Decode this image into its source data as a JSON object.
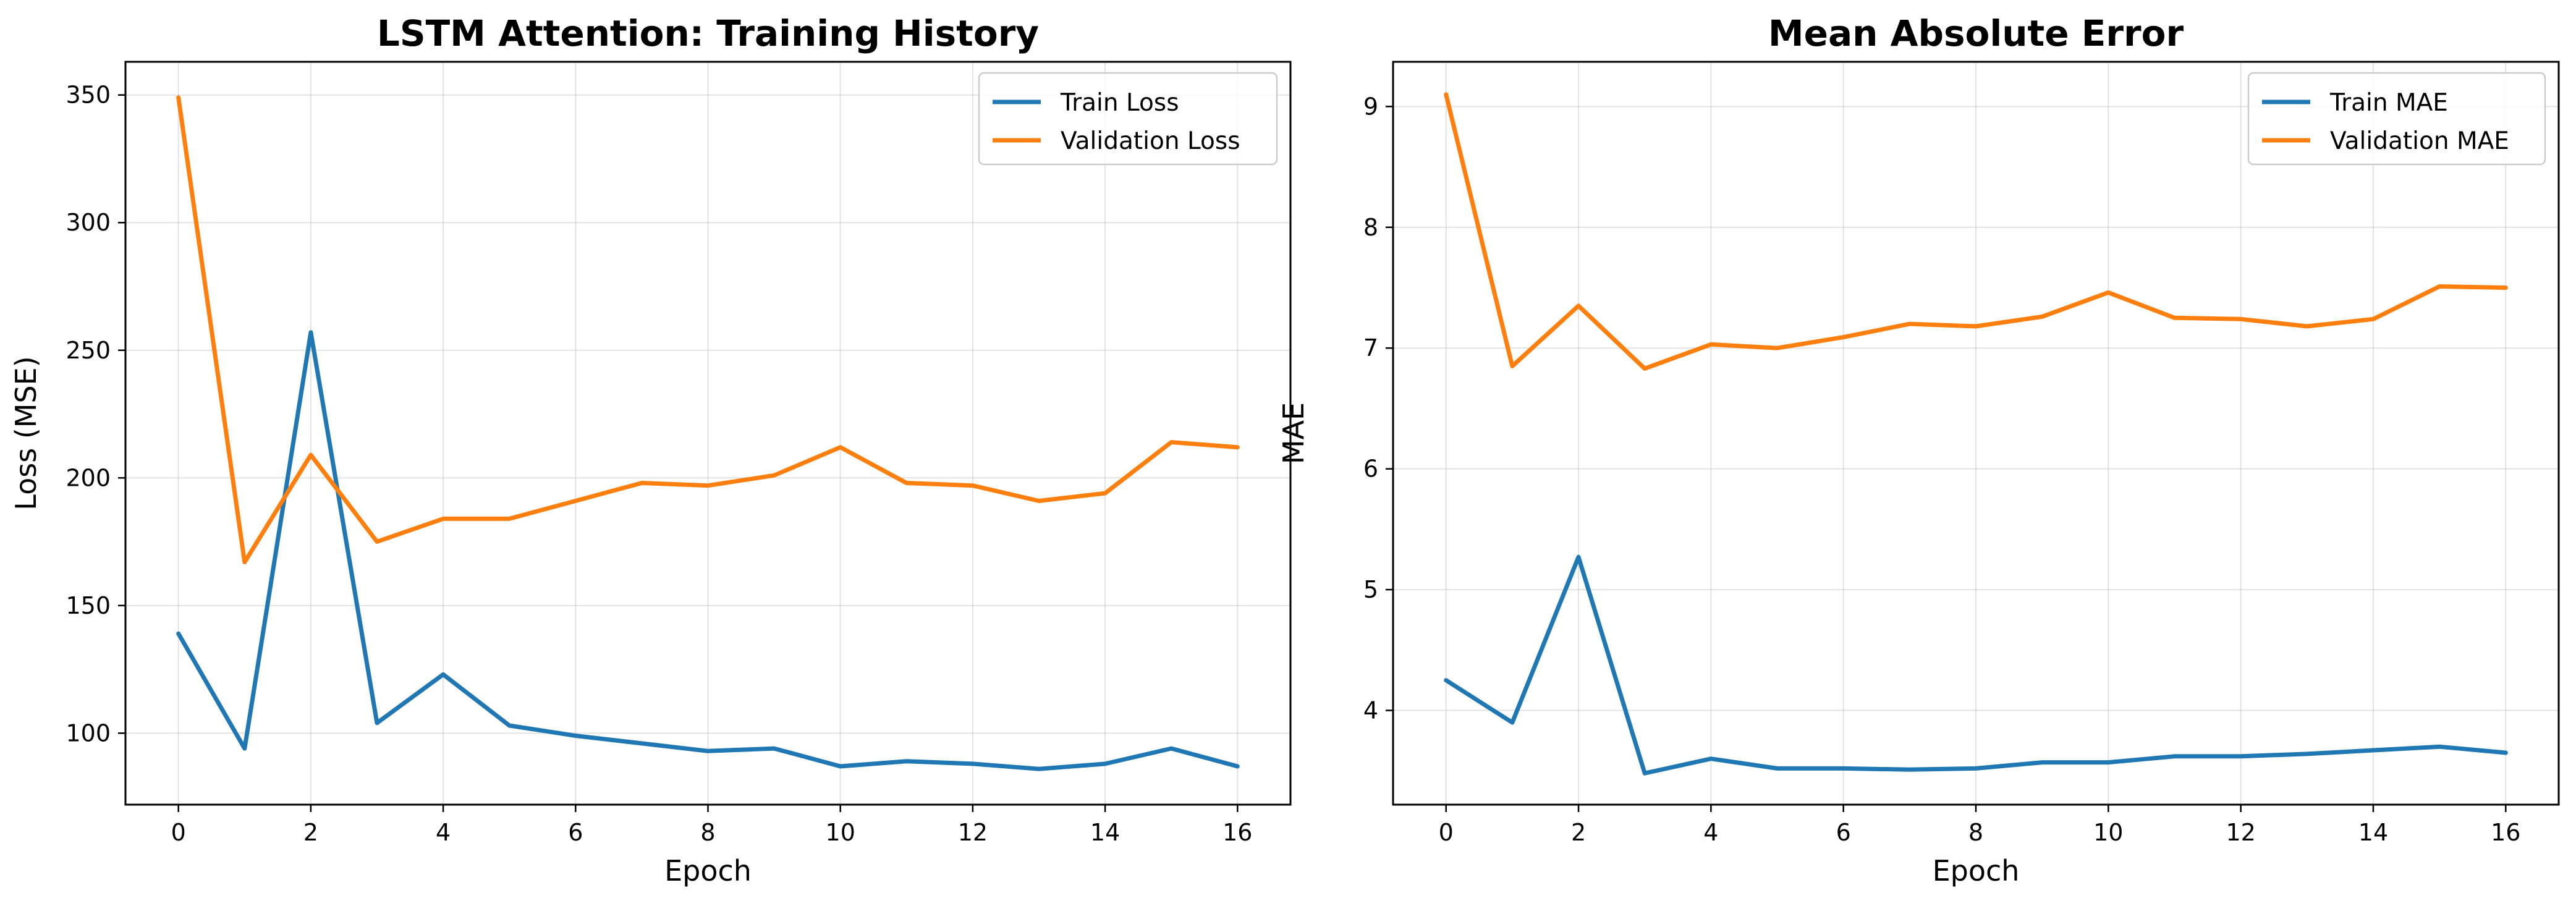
{
  "colors": {
    "train": "#1f77b4",
    "validation": "#ff7f0e"
  },
  "chart_data": [
    {
      "type": "line",
      "title": "LSTM Attention: Training History",
      "xlabel": "Epoch",
      "ylabel": "Loss (MSE)",
      "xlim": [
        -0.8,
        16.8
      ],
      "ylim": [
        72,
        363
      ],
      "xticks": [
        0,
        2,
        4,
        6,
        8,
        10,
        12,
        14,
        16
      ],
      "yticks": [
        100,
        150,
        200,
        250,
        300,
        350
      ],
      "grid": true,
      "legend": "top-right",
      "x": [
        0,
        1,
        2,
        3,
        4,
        5,
        6,
        7,
        8,
        9,
        10,
        11,
        12,
        13,
        14,
        15,
        16
      ],
      "series": [
        {
          "name": "Train Loss",
          "color": "#1f77b4",
          "values": [
            139,
            94,
            257,
            104,
            123,
            103,
            99,
            96,
            93,
            94,
            87,
            89,
            88,
            86,
            88,
            94,
            87
          ]
        },
        {
          "name": "Validation Loss",
          "color": "#ff7f0e",
          "values": [
            349,
            167,
            209,
            175,
            184,
            184,
            191,
            198,
            197,
            201,
            212,
            198,
            197,
            191,
            194,
            214,
            212
          ]
        }
      ]
    },
    {
      "type": "line",
      "title": "Mean Absolute Error",
      "xlabel": "Epoch",
      "ylabel": "MAE",
      "xlim": [
        -0.8,
        16.8
      ],
      "ylim": [
        3.22,
        9.37
      ],
      "xticks": [
        0,
        2,
        4,
        6,
        8,
        10,
        12,
        14,
        16
      ],
      "yticks": [
        4,
        5,
        6,
        7,
        8,
        9
      ],
      "grid": true,
      "legend": "top-right",
      "x": [
        0,
        1,
        2,
        3,
        4,
        5,
        6,
        7,
        8,
        9,
        10,
        11,
        12,
        13,
        14,
        15,
        16
      ],
      "series": [
        {
          "name": "Train MAE",
          "color": "#1f77b4",
          "values": [
            4.25,
            3.9,
            5.27,
            3.48,
            3.6,
            3.52,
            3.52,
            3.51,
            3.52,
            3.57,
            3.57,
            3.62,
            3.62,
            3.64,
            3.67,
            3.7,
            3.65
          ]
        },
        {
          "name": "Validation MAE",
          "color": "#ff7f0e",
          "values": [
            9.1,
            6.85,
            7.35,
            6.83,
            7.03,
            7.0,
            7.09,
            7.2,
            7.18,
            7.26,
            7.46,
            7.25,
            7.24,
            7.18,
            7.24,
            7.51,
            7.5
          ]
        }
      ]
    }
  ]
}
